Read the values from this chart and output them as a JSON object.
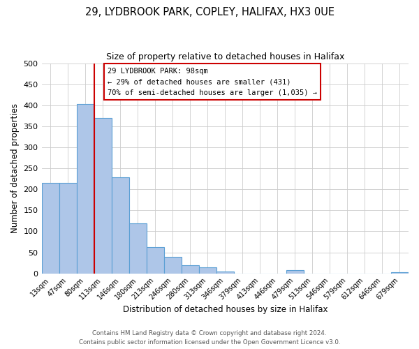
{
  "title": "29, LYDBROOK PARK, COPLEY, HALIFAX, HX3 0UE",
  "subtitle": "Size of property relative to detached houses in Halifax",
  "xlabel": "Distribution of detached houses by size in Halifax",
  "ylabel": "Number of detached properties",
  "bar_labels": [
    "13sqm",
    "47sqm",
    "80sqm",
    "113sqm",
    "146sqm",
    "180sqm",
    "213sqm",
    "246sqm",
    "280sqm",
    "313sqm",
    "346sqm",
    "379sqm",
    "413sqm",
    "446sqm",
    "479sqm",
    "513sqm",
    "546sqm",
    "579sqm",
    "612sqm",
    "646sqm",
    "679sqm"
  ],
  "bar_values": [
    215,
    215,
    403,
    370,
    228,
    119,
    63,
    39,
    20,
    14,
    5,
    0,
    0,
    0,
    8,
    0,
    0,
    0,
    0,
    0,
    2
  ],
  "bar_color": "#aec6e8",
  "bar_edge_color": "#5a9fd4",
  "vline_x": 2.5,
  "vline_color": "#cc0000",
  "annotation_title": "29 LYDBROOK PARK: 98sqm",
  "annotation_line1": "← 29% of detached houses are smaller (431)",
  "annotation_line2": "70% of semi-detached houses are larger (1,035) →",
  "annotation_box_color": "#ffffff",
  "annotation_box_edge": "#cc0000",
  "ylim": [
    0,
    500
  ],
  "footnote1": "Contains HM Land Registry data © Crown copyright and database right 2024.",
  "footnote2": "Contains public sector information licensed under the Open Government Licence v3.0."
}
